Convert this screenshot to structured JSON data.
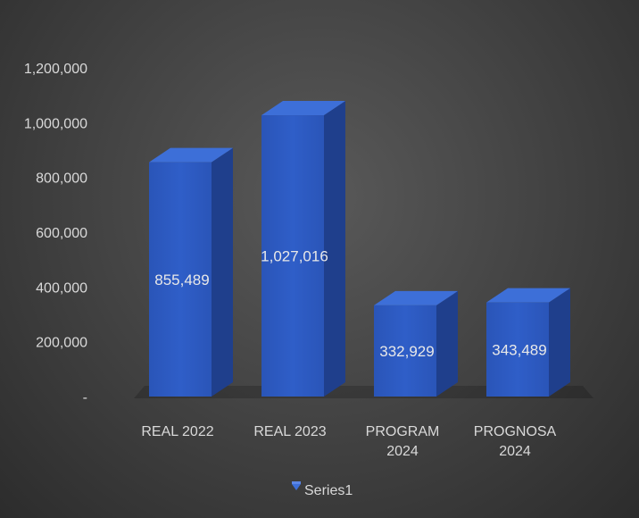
{
  "chart_data": {
    "type": "bar",
    "categories": [
      "REAL 2022",
      "REAL 2023",
      "PROGRAM 2024",
      "PROGNOSA 2024"
    ],
    "series": [
      {
        "name": "Series1",
        "values": [
          855489,
          1027016,
          332929,
          343489
        ]
      }
    ],
    "data_labels": [
      "855,489",
      "1,027,016",
      "332,929",
      "343,489"
    ],
    "y_ticks": [
      {
        "value": 0,
        "label": "-"
      },
      {
        "value": 200000,
        "label": "200,000"
      },
      {
        "value": 400000,
        "label": "400,000"
      },
      {
        "value": 600000,
        "label": "600,000"
      },
      {
        "value": 800000,
        "label": "800,000"
      },
      {
        "value": 1000000,
        "label": "1,000,000"
      },
      {
        "value": 1200000,
        "label": "1,200,000"
      }
    ],
    "ylim": [
      0,
      1200000
    ],
    "grid": false,
    "legend_position": "bottom",
    "bar_style": "3d-column",
    "colors": {
      "bar_front": "#2f5ec8",
      "bar_side": "#1f3f8c",
      "bar_top": "#3d6fd8",
      "text": "#d9d9d9"
    }
  }
}
